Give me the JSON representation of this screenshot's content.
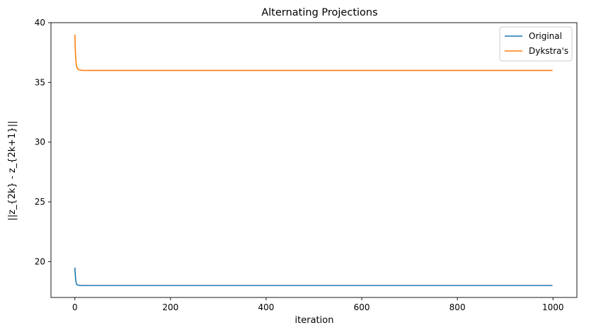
{
  "chart_data": {
    "type": "line",
    "title": "Alternating Projections",
    "xlabel": "iteration",
    "ylabel": "||z_{2k} - z_{2k+1}||",
    "xlim": [
      -50,
      1050
    ],
    "ylim": [
      17.0,
      40.0
    ],
    "xticks": [
      0,
      200,
      400,
      600,
      800,
      1000
    ],
    "yticks": [
      20,
      25,
      30,
      35,
      40
    ],
    "grid": false,
    "legend_position": "top-right",
    "series": [
      {
        "name": "Original",
        "color": "#1f77b4",
        "x": [
          0,
          1,
          2,
          3,
          4,
          5,
          7,
          10,
          15,
          20,
          30,
          50,
          100,
          200,
          300,
          400,
          500,
          600,
          700,
          800,
          900,
          999
        ],
        "y": [
          19.5,
          18.8,
          18.4,
          18.2,
          18.1,
          18.05,
          18.03,
          18.01,
          18.0,
          18.0,
          18.0,
          18.0,
          18.0,
          18.0,
          18.0,
          18.0,
          18.0,
          18.0,
          18.0,
          18.0,
          18.0,
          18.0
        ]
      },
      {
        "name": "Dykstra's",
        "color": "#ff7f0e",
        "x": [
          0,
          1,
          2,
          3,
          4,
          5,
          7,
          10,
          15,
          20,
          30,
          50,
          100,
          200,
          300,
          400,
          500,
          600,
          700,
          800,
          900,
          999
        ],
        "y": [
          39.0,
          37.6,
          36.9,
          36.5,
          36.3,
          36.18,
          36.09,
          36.04,
          36.01,
          36.0,
          36.0,
          36.0,
          36.0,
          36.0,
          36.0,
          36.0,
          36.0,
          36.0,
          36.0,
          36.0,
          36.0,
          36.0
        ]
      }
    ]
  }
}
